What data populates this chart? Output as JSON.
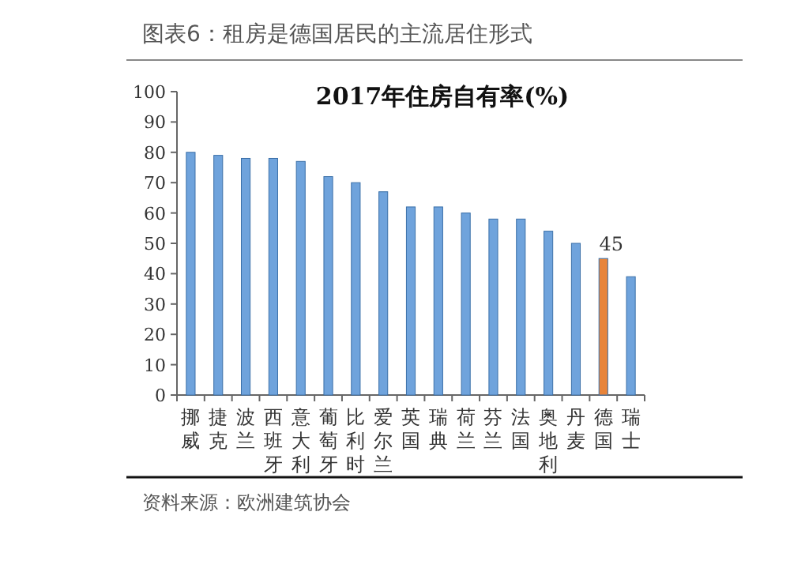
{
  "chart_data": {
    "type": "bar",
    "title": "2017年住房自有率(%)",
    "subtitle": "图表6：租房是德国居民的主流居住形式",
    "categories": [
      "挪威",
      "捷克",
      "波兰",
      "西班牙",
      "意大利",
      "葡萄牙",
      "比利时",
      "爱尔兰",
      "英国",
      "瑞典",
      "荷兰",
      "芬兰",
      "法国",
      "奥地利",
      "丹麦",
      "德国",
      "瑞士"
    ],
    "values": [
      80,
      79,
      78,
      78,
      77,
      72,
      70,
      67,
      62,
      62,
      60,
      58,
      58,
      54,
      50,
      45,
      39
    ],
    "colors": [
      "#6fa3dc",
      "#6fa3dc",
      "#6fa3dc",
      "#6fa3dc",
      "#6fa3dc",
      "#6fa3dc",
      "#6fa3dc",
      "#6fa3dc",
      "#6fa3dc",
      "#6fa3dc",
      "#6fa3dc",
      "#6fa3dc",
      "#6fa3dc",
      "#6fa3dc",
      "#6fa3dc",
      "#e8843a",
      "#6fa3dc"
    ],
    "value_labels": [
      null,
      null,
      null,
      null,
      null,
      null,
      null,
      null,
      null,
      null,
      null,
      null,
      null,
      null,
      null,
      "45",
      null
    ],
    "ylim": [
      0,
      100
    ],
    "yticks": [
      0,
      10,
      20,
      30,
      40,
      50,
      60,
      70,
      80,
      90,
      100
    ],
    "grid": false,
    "annotations": [
      "资料来源：欧洲建筑协会"
    ]
  }
}
